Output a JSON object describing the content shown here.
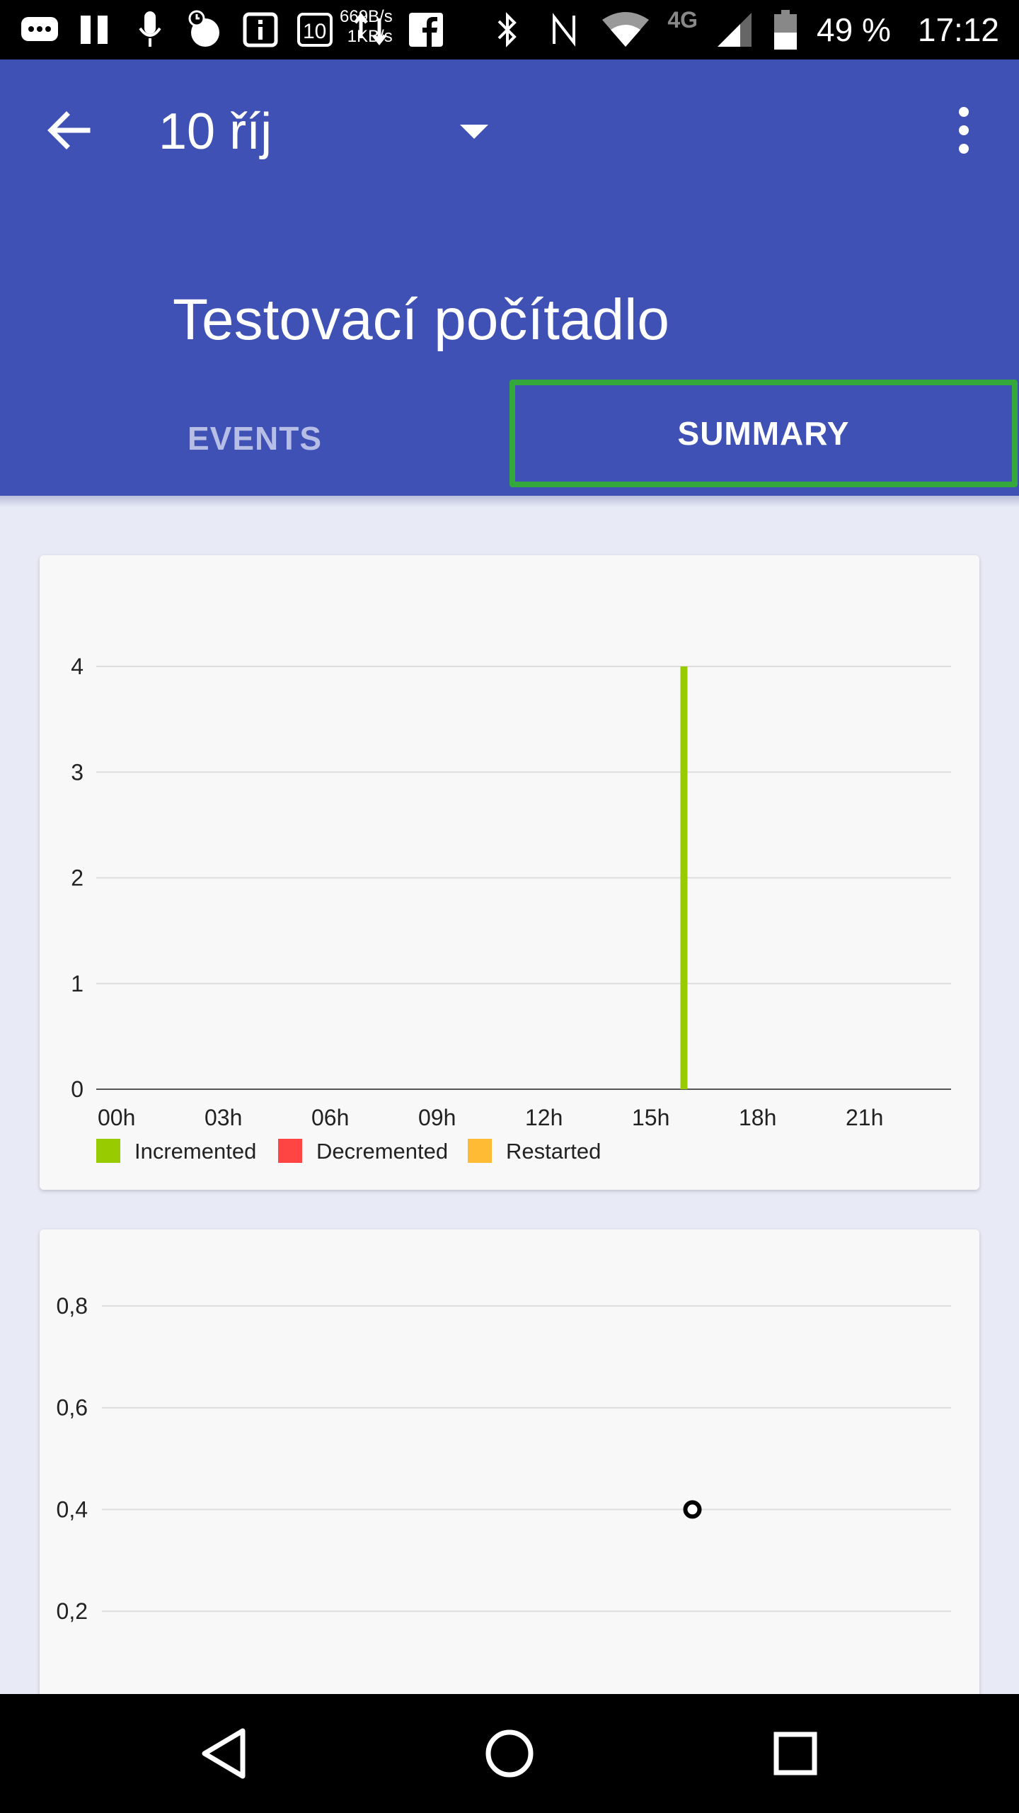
{
  "status_bar": {
    "data_rate_up": "669B/s",
    "data_rate_down": "1KB/s",
    "network_type": "4G",
    "battery_percent": "49 %",
    "battery_icon_text": "49",
    "time": "17:12",
    "icons": [
      "chat-icon",
      "pause-icon",
      "microphone-icon",
      "world-clock-icon",
      "info-icon",
      "notification-10-icon",
      "transfer-icon",
      "facebook-icon",
      "bluetooth-icon",
      "nfc-icon",
      "wifi-icon",
      "signal-icon",
      "battery-icon"
    ]
  },
  "app_bar": {
    "date_label": "10 říj",
    "title": "Testovací počítadlo",
    "tabs": [
      {
        "label": "EVENTS",
        "selected": false
      },
      {
        "label": "SUMMARY",
        "selected": true
      }
    ],
    "colors": {
      "primary": "#3f51b5",
      "highlight": "#34a83a"
    }
  },
  "chart_data": [
    {
      "type": "bar",
      "x_tick_labels": [
        "00h",
        "03h",
        "06h",
        "09h",
        "12h",
        "15h",
        "18h",
        "21h"
      ],
      "y_tick_labels": [
        "0",
        "1",
        "2",
        "3",
        "4"
      ],
      "ylim": [
        0,
        4
      ],
      "xlim": [
        0,
        24
      ],
      "series": [
        {
          "name": "Incremented",
          "color": "#99cc00",
          "points": [
            {
              "x": 16.5,
              "y": 4
            }
          ]
        },
        {
          "name": "Decremented",
          "color": "#ff4444",
          "points": []
        },
        {
          "name": "Restarted",
          "color": "#ffbb33",
          "points": []
        }
      ],
      "grid": true,
      "legend": "bottom-left"
    },
    {
      "type": "scatter",
      "y_tick_labels": [
        "0,8",
        "0,6",
        "0,4",
        "0,2"
      ],
      "y_tick_values": [
        0.8,
        0.6,
        0.4,
        0.2
      ],
      "xlim": [
        0,
        24
      ],
      "points": [
        {
          "x": 16.5,
          "y": 0.4
        }
      ],
      "grid": true
    }
  ],
  "nav_bar": {
    "buttons": [
      "back-nav-icon",
      "home-nav-icon",
      "recents-nav-icon"
    ]
  }
}
